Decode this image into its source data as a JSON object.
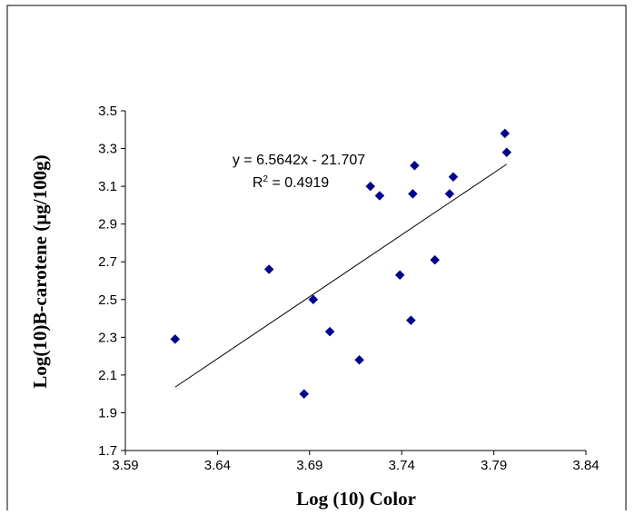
{
  "chart_data": {
    "type": "scatter",
    "title": "",
    "xlabel": "Log (10) Color",
    "ylabel": "Log(10)B-carotene (µg/100g)",
    "xlim": [
      3.59,
      3.84
    ],
    "ylim": [
      1.7,
      3.5
    ],
    "xticks": [
      "3.59",
      "3.64",
      "3.69",
      "3.74",
      "3.79",
      "3.84"
    ],
    "yticks": [
      "1.7",
      "1.9",
      "2.1",
      "2.3",
      "2.5",
      "2.7",
      "2.9",
      "3.1",
      "3.3",
      "3.5"
    ],
    "grid": false,
    "legend": "none",
    "marker": "diamond",
    "marker_color": "#00008B",
    "series": [
      {
        "points": [
          {
            "x": 3.617,
            "y": 2.29
          },
          {
            "x": 3.668,
            "y": 2.66
          },
          {
            "x": 3.687,
            "y": 2.0
          },
          {
            "x": 3.692,
            "y": 2.5
          },
          {
            "x": 3.701,
            "y": 2.33
          },
          {
            "x": 3.717,
            "y": 2.18
          },
          {
            "x": 3.723,
            "y": 3.1
          },
          {
            "x": 3.728,
            "y": 3.05
          },
          {
            "x": 3.739,
            "y": 2.63
          },
          {
            "x": 3.745,
            "y": 2.39
          },
          {
            "x": 3.746,
            "y": 3.06
          },
          {
            "x": 3.747,
            "y": 3.21
          },
          {
            "x": 3.758,
            "y": 2.71
          },
          {
            "x": 3.766,
            "y": 3.06
          },
          {
            "x": 3.768,
            "y": 3.15
          },
          {
            "x": 3.796,
            "y": 3.38
          },
          {
            "x": 3.797,
            "y": 3.28
          }
        ]
      }
    ],
    "trendline": {
      "equation": "y = 6.5642x - 21.707",
      "r2_prefix": "R",
      "r2_exp": "2",
      "r2_value": " = 0.4919",
      "slope": 6.5642,
      "intercept": -21.707,
      "x_range": [
        3.617,
        3.797
      ],
      "color": "#000000"
    }
  }
}
